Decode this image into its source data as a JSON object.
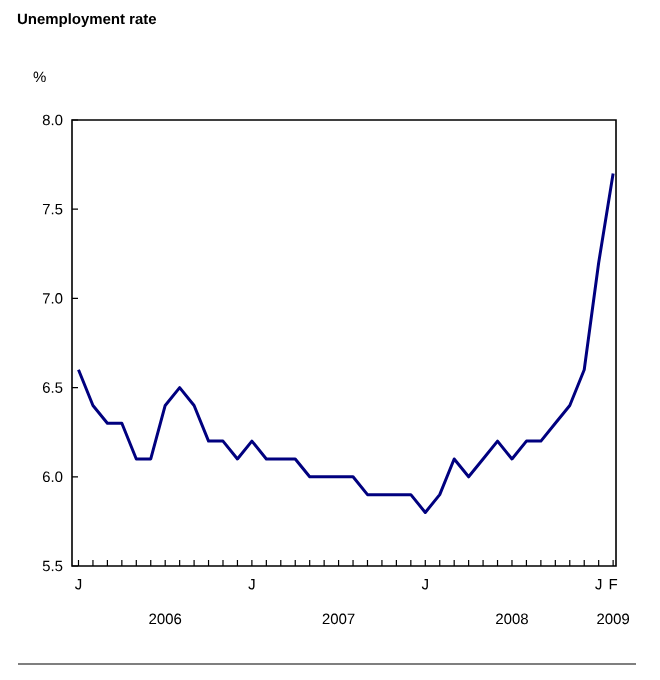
{
  "chart_data": {
    "type": "line",
    "title": "Unemployment rate",
    "ylabel": "%",
    "categories": [
      "J",
      null,
      null,
      null,
      null,
      null,
      null,
      null,
      null,
      null,
      null,
      null,
      "J",
      null,
      null,
      null,
      null,
      null,
      null,
      null,
      null,
      null,
      null,
      null,
      "J",
      null,
      null,
      null,
      null,
      null,
      null,
      null,
      null,
      null,
      null,
      null,
      "J",
      "F"
    ],
    "series": [
      {
        "color": "#00007f",
        "values": [
          6.6,
          6.4,
          6.3,
          6.3,
          6.1,
          6.1,
          6.4,
          6.5,
          6.4,
          6.2,
          6.2,
          6.1,
          6.2,
          6.1,
          6.1,
          6.1,
          6.0,
          6.0,
          6.0,
          6.0,
          5.9,
          5.9,
          5.9,
          5.9,
          5.8,
          5.9,
          6.1,
          6.0,
          6.1,
          6.2,
          6.1,
          6.2,
          6.2,
          6.3,
          6.4,
          6.6,
          7.2,
          7.7
        ]
      }
    ],
    "ylim": [
      5.5,
      8.0
    ],
    "yticks": [
      5.5,
      {
        "value": 6,
        "label": "6.0"
      },
      6.5,
      {
        "value": 7,
        "label": "7.0"
      },
      7.5,
      {
        "value": 8,
        "label": "8.0"
      }
    ],
    "annotations": [
      "2006",
      "2007",
      "2008",
      "2009"
    ],
    "grid": false,
    "line_style": "solid"
  }
}
